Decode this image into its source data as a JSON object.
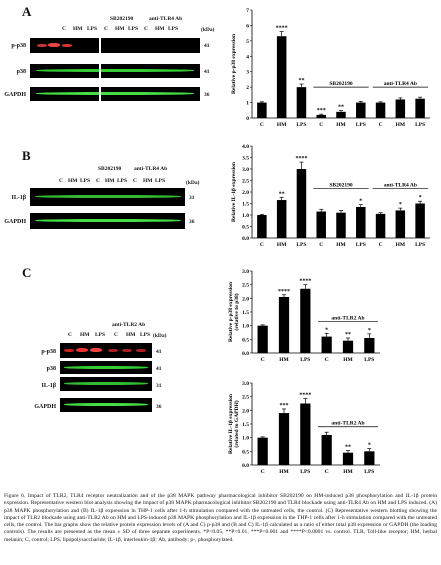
{
  "panel_letters": {
    "a": "A",
    "b": "B",
    "c": "C"
  },
  "kda_label": "(kDa)",
  "blot_labels": {
    "a": [
      {
        "name": "p-p38",
        "kda": "41"
      },
      {
        "name": "p38",
        "kda": "41"
      },
      {
        "name": "GAPDH",
        "kda": "36"
      }
    ],
    "b": [
      {
        "name": "IL-1β",
        "kda": "31"
      },
      {
        "name": "GAPDH",
        "kda": "36"
      }
    ],
    "c": [
      {
        "name": "p-p38",
        "kda": "41"
      },
      {
        "name": "p38",
        "kda": "41"
      },
      {
        "name": "IL-1β",
        "kda": "31"
      },
      {
        "name": "GAPDH",
        "kda": "36"
      }
    ]
  },
  "lane_headers": {
    "a": {
      "groups": [
        "SB202190",
        "anti-TLR4 Ab"
      ],
      "lanes": [
        "C",
        "HM",
        "LPS",
        "C",
        "HM",
        "LPS",
        "C",
        "HM",
        "LPS"
      ]
    },
    "b": {
      "groups": [
        "SB202190",
        "anti-TLR4 Ab"
      ],
      "lanes": [
        "C",
        "HM",
        "LPS",
        "C",
        "HM",
        "LPS",
        "C",
        "HM",
        "LPS"
      ]
    },
    "c": {
      "groups": [
        "anti-TLR2 Ab"
      ],
      "lanes": [
        "C",
        "HM",
        "LPS",
        "C",
        "HM",
        "LPS"
      ]
    }
  },
  "chart_data": [
    {
      "type": "bar",
      "panel": "A",
      "ylabel": "Relative p-p38 expression",
      "ylim": [
        0,
        7
      ],
      "yticks": [
        0,
        1,
        2,
        3,
        4,
        5,
        6,
        7
      ],
      "categories": [
        "C",
        "HM",
        "LPS",
        "C",
        "HM",
        "LPS",
        "C",
        "HM",
        "LPS"
      ],
      "values": [
        1.0,
        5.3,
        2.0,
        0.2,
        0.4,
        1.0,
        1.0,
        1.2,
        1.25
      ],
      "errors": [
        0.05,
        0.3,
        0.2,
        0.05,
        0.08,
        0.08,
        0.05,
        0.1,
        0.1
      ],
      "significance": [
        "",
        "****",
        "**",
        "***",
        "**",
        "",
        "",
        "",
        ""
      ],
      "group_labels": [
        {
          "text": "SB202190",
          "from": 3,
          "to": 5
        },
        {
          "text": "anti-TLR4 Ab",
          "from": 6,
          "to": 8
        }
      ]
    },
    {
      "type": "bar",
      "panel": "B",
      "ylabel": "Relative IL-1β expression",
      "ylim": [
        0,
        4
      ],
      "yticks": [
        0.0,
        0.5,
        1.0,
        1.5,
        2.0,
        2.5,
        3.0,
        3.5,
        4.0
      ],
      "categories": [
        "C",
        "HM",
        "LPS",
        "C",
        "HM",
        "LPS",
        "C",
        "HM",
        "LPS"
      ],
      "values": [
        1.0,
        1.65,
        3.0,
        1.15,
        1.1,
        1.35,
        1.05,
        1.2,
        1.5
      ],
      "errors": [
        0.03,
        0.12,
        0.3,
        0.1,
        0.1,
        0.1,
        0.05,
        0.1,
        0.1
      ],
      "significance": [
        "",
        "**",
        "****",
        "",
        "",
        "*",
        "",
        "*",
        "*"
      ],
      "group_labels": [
        {
          "text": "SB202190",
          "from": 3,
          "to": 5
        },
        {
          "text": "anti-TLR4 Ab",
          "from": 6,
          "to": 8
        }
      ]
    },
    {
      "type": "bar",
      "panel": "C-top",
      "ylabel": "Relative p-p38 expression (relative to p38)",
      "ylim": [
        0,
        3.0
      ],
      "yticks": [
        0.0,
        0.5,
        1.0,
        1.5,
        2.0,
        2.5,
        3.0
      ],
      "categories": [
        "C",
        "HM",
        "LPS",
        "C",
        "HM",
        "LPS"
      ],
      "values": [
        1.0,
        2.05,
        2.35,
        0.6,
        0.45,
        0.55
      ],
      "errors": [
        0.03,
        0.08,
        0.15,
        0.12,
        0.1,
        0.15
      ],
      "significance": [
        "",
        "****",
        "****",
        "*",
        "**",
        "*"
      ],
      "group_labels": [
        {
          "text": "anti-TLR2 Ab",
          "from": 3,
          "to": 5
        }
      ]
    },
    {
      "type": "bar",
      "panel": "C-bottom",
      "ylabel": "Relative IL-1β expression (related to GAPDH)",
      "ylim": [
        0,
        3.0
      ],
      "yticks": [
        0.0,
        0.5,
        1.0,
        1.5,
        2.0,
        2.5,
        3.0
      ],
      "categories": [
        "C",
        "HM",
        "LPS",
        "C",
        "HM",
        "LPS"
      ],
      "values": [
        1.0,
        1.9,
        2.25,
        1.1,
        0.45,
        0.5
      ],
      "errors": [
        0.03,
        0.15,
        0.18,
        0.1,
        0.08,
        0.1
      ],
      "significance": [
        "",
        "***",
        "****",
        "",
        "**",
        "*"
      ],
      "group_labels": [
        {
          "text": "anti-TLR2 Ab",
          "from": 3,
          "to": 5
        }
      ]
    }
  ],
  "caption": "Figure 6. Impact of TLR2, TLR4 receptor neutralization and of the p38 MAPK pathway pharmacological inhibitor SB202190 on HM-induced p38 phosphorylation and IL-1β protein expression. Representative western blot analysis showing the impact of p38 MAPK pharmacological inhibitor SB202190 and TLR4 blockade using anti-TLR4 Ab on HM and LPS induced. (A) p38 MAPK phosphorylation and (B) IL-1β expression in THP-1 cells after 1-h stimulation compared with the untreated cells, the control. (C) Representative western blotting showing the impact of TLR2 blockade using anti-TLR2 Ab on HM and LPS-induced p38 MAPK phosphorylation and IL-1β expression in the THP-1 cells after 1-h stimulation compared with the untreated cells, the control. The bar graphs show the relative protein expression levels of (A and C) p-p38 and (B and C) IL-1β calculated as a ratio of either total p38 expression or GAPDH (the loading controls). The results are presented as the mean ± SD of three separate experiments. *P<0.05, **P<0.01, ***P<0.001 and ****P<0.0001 vs. control. TLR, Toll-like receptor; HM, herbal melanin; C, control; LPS, lipopolysaccharide; IL-1β, interleukin-1β; Ab, antibody; p-, phosphorylated."
}
